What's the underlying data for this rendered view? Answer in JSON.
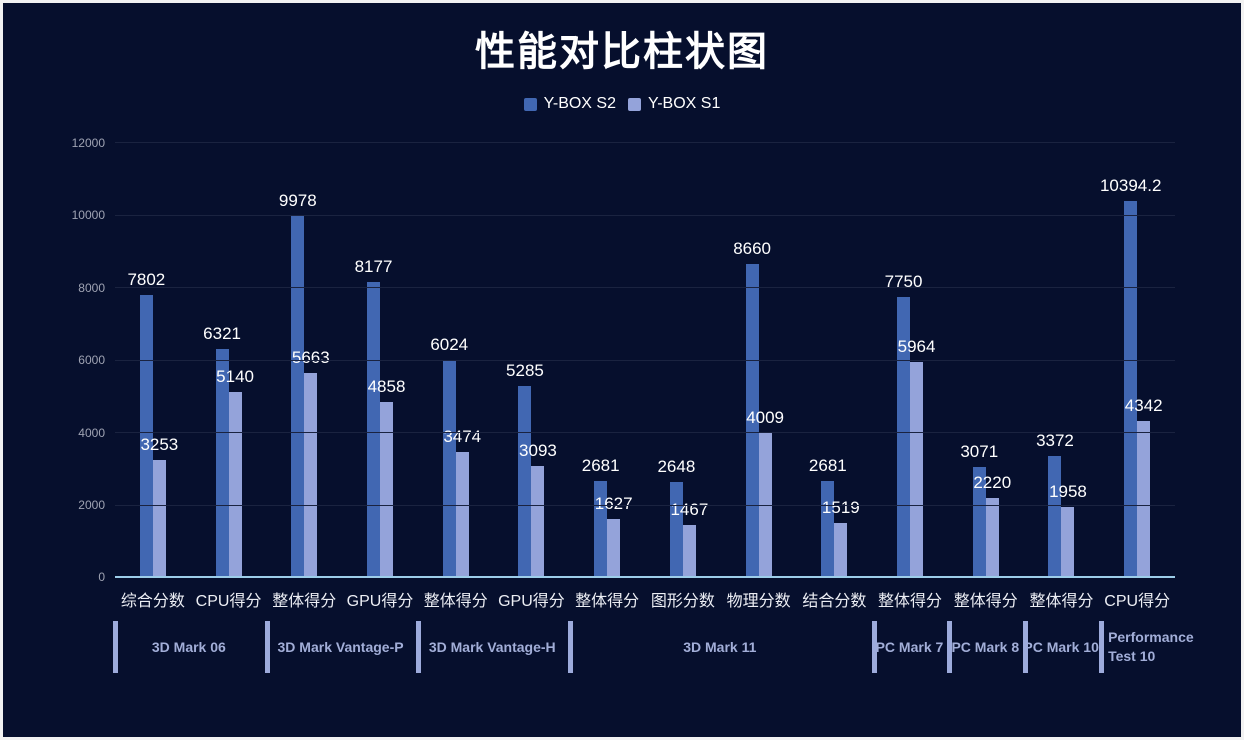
{
  "chart_data": {
    "type": "bar",
    "title": "性能对比柱状图",
    "legend_position": "top",
    "grid": true,
    "background_color": "#060f2d",
    "y_axis": {
      "min": 0,
      "max": 12000,
      "step": 2000,
      "ticks": [
        0,
        2000,
        4000,
        6000,
        8000,
        10000,
        12000
      ]
    },
    "categories": [
      "综合分数",
      "CPU得分",
      "整体得分",
      "GPU得分",
      "整体得分",
      "GPU得分",
      "整体得分",
      "图形分数",
      "物理分数",
      "结合分数",
      "整体得分",
      "整体得分",
      "整体得分",
      "CPU得分"
    ],
    "series": [
      {
        "name": "Y-BOX S2",
        "color": "#4167b2",
        "values": [
          7802,
          6321,
          9978,
          8177,
          6024,
          5285,
          2681,
          2648,
          8660,
          2681,
          7750,
          3071,
          3372,
          10394.2
        ]
      },
      {
        "name": "Y-BOX S1",
        "color": "#94a3da",
        "values": [
          3253,
          5140,
          5663,
          4858,
          3474,
          3093,
          1627,
          1467,
          4009,
          1519,
          5964,
          2220,
          1958,
          4342
        ]
      }
    ],
    "category_groups": [
      {
        "label": "3D Mark 06",
        "span": 2,
        "align": "center"
      },
      {
        "label": "3D Mark Vantage-P",
        "span": 2,
        "align": "center"
      },
      {
        "label": "3D Mark Vantage-H",
        "span": 2,
        "align": "center"
      },
      {
        "label": "3D Mark 11",
        "span": 4,
        "align": "center"
      },
      {
        "label": "PC Mark 7",
        "span": 1,
        "align": "center"
      },
      {
        "label": "PC Mark 8",
        "span": 1,
        "align": "center"
      },
      {
        "label": "PC Mark 10",
        "span": 1,
        "align": "center"
      },
      {
        "label": "Performance Test 10",
        "span": 1,
        "align": "left"
      }
    ],
    "colors": {
      "axis_line": "#9ccde9",
      "gridline": "#1a2340",
      "tick_text": "#9fa3b3",
      "category_text": "#eceef4",
      "value_text": "#ffffff",
      "group_text": "#a2aed8",
      "separator": "#9dabdc"
    }
  }
}
